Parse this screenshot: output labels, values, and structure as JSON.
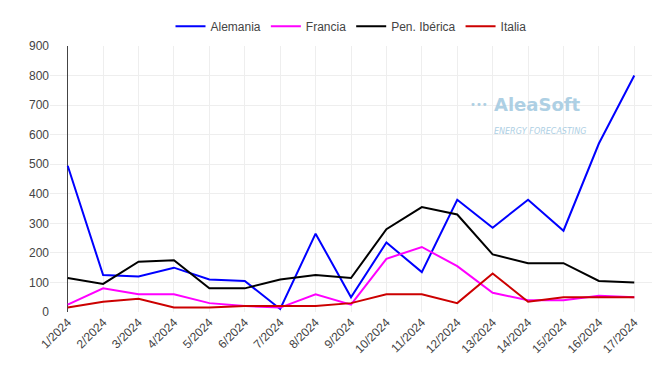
{
  "chart_data": {
    "type": "line",
    "categories": [
      "1/2024",
      "2/2024",
      "3/2024",
      "4/2024",
      "5/2024",
      "6/2024",
      "7/2024",
      "8/2024",
      "9/2024",
      "10/2024",
      "11/2024",
      "12/2024",
      "13/2024",
      "14/2024",
      "15/2024",
      "16/2024",
      "17/2024"
    ],
    "series": [
      {
        "name": "Alemania",
        "color": "#0000ff",
        "values": [
          495,
          125,
          120,
          150,
          110,
          105,
          10,
          265,
          50,
          235,
          135,
          380,
          285,
          380,
          275,
          570,
          800
        ]
      },
      {
        "name": "Francia",
        "color": "#ff00ff",
        "values": [
          25,
          80,
          60,
          60,
          30,
          20,
          15,
          60,
          25,
          180,
          220,
          155,
          65,
          40,
          40,
          55,
          50
        ]
      },
      {
        "name": "Pen. Ibérica",
        "color": "#000000",
        "values": [
          115,
          95,
          170,
          175,
          80,
          80,
          110,
          125,
          115,
          280,
          355,
          330,
          195,
          165,
          165,
          105,
          100
        ]
      },
      {
        "name": "Italia",
        "color": "#cc0000",
        "values": [
          15,
          35,
          45,
          15,
          15,
          20,
          20,
          20,
          30,
          60,
          60,
          30,
          130,
          35,
          50,
          50,
          50
        ]
      }
    ],
    "ylim": [
      0,
      900
    ],
    "yticks": [
      0,
      100,
      200,
      300,
      400,
      500,
      600,
      700,
      800,
      900
    ],
    "grid": true,
    "legend": "top",
    "annotations": [
      "•••",
      "AleaSoft",
      "ENERGY FORECASTING"
    ]
  }
}
